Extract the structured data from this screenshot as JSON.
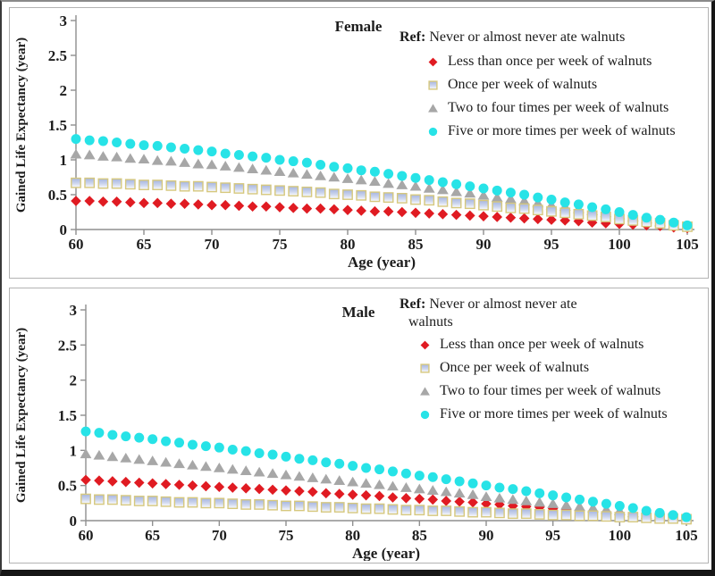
{
  "frame": {
    "background": "#ffffff",
    "outer_border_color": "#161616",
    "panel_border_color": "#b3b3b3",
    "axis_color": "#8f8f8f",
    "text_color": "#1c1c1c"
  },
  "chart_data": [
    {
      "type": "scatter",
      "title": "Female",
      "xlabel": "Age (year)",
      "ylabel": "Gained Life Expectancy (year)",
      "xlim": [
        60,
        105
      ],
      "ylim": [
        0,
        3
      ],
      "xticks": [
        60,
        65,
        70,
        75,
        80,
        85,
        90,
        95,
        100,
        105
      ],
      "yticks": [
        0,
        0.5,
        1,
        1.5,
        2,
        2.5,
        3
      ],
      "ytick_labels": [
        "0",
        "0.5",
        "1",
        "1.5",
        "2",
        "2.5",
        "3"
      ],
      "grid": false,
      "legend_position": "upper right",
      "legend_ref": {
        "label": "Ref:",
        "lines": [
          "Never or almost never ate walnuts"
        ]
      },
      "ages": [
        60,
        61,
        62,
        63,
        64,
        65,
        66,
        67,
        68,
        69,
        70,
        71,
        72,
        73,
        74,
        75,
        76,
        77,
        78,
        79,
        80,
        81,
        82,
        83,
        84,
        85,
        86,
        87,
        88,
        89,
        90,
        91,
        92,
        93,
        94,
        95,
        96,
        97,
        98,
        99,
        100,
        101,
        102,
        103,
        104,
        105
      ],
      "series": [
        {
          "name": "Less than once per week of walnuts",
          "marker": "diamond",
          "color": "#e01b22",
          "values": [
            0.41,
            0.41,
            0.4,
            0.4,
            0.39,
            0.38,
            0.38,
            0.37,
            0.37,
            0.36,
            0.35,
            0.35,
            0.34,
            0.33,
            0.33,
            0.32,
            0.31,
            0.3,
            0.3,
            0.29,
            0.28,
            0.27,
            0.26,
            0.26,
            0.25,
            0.24,
            0.23,
            0.22,
            0.21,
            0.2,
            0.19,
            0.18,
            0.17,
            0.16,
            0.15,
            0.14,
            0.13,
            0.12,
            0.1,
            0.09,
            0.08,
            0.07,
            0.06,
            0.05,
            0.03,
            0.02
          ]
        },
        {
          "name": "Once per week of walnuts",
          "marker": "square",
          "color": "#d6c87e",
          "fill_top": "#a6b5e0",
          "fill_bottom": "#fdfdff",
          "values": [
            0.67,
            0.67,
            0.66,
            0.66,
            0.65,
            0.64,
            0.64,
            0.63,
            0.62,
            0.62,
            0.61,
            0.6,
            0.59,
            0.58,
            0.57,
            0.56,
            0.55,
            0.54,
            0.53,
            0.51,
            0.5,
            0.49,
            0.47,
            0.46,
            0.45,
            0.43,
            0.42,
            0.4,
            0.38,
            0.37,
            0.35,
            0.33,
            0.31,
            0.3,
            0.28,
            0.26,
            0.24,
            0.22,
            0.2,
            0.18,
            0.15,
            0.13,
            0.11,
            0.09,
            0.06,
            0.04
          ]
        },
        {
          "name": "Two to four times per week of walnuts",
          "marker": "triangle",
          "color": "#a7a7a7",
          "values": [
            1.08,
            1.07,
            1.05,
            1.04,
            1.02,
            1.01,
            0.99,
            0.98,
            0.96,
            0.94,
            0.93,
            0.91,
            0.89,
            0.87,
            0.85,
            0.83,
            0.81,
            0.79,
            0.77,
            0.75,
            0.73,
            0.71,
            0.69,
            0.66,
            0.64,
            0.62,
            0.59,
            0.57,
            0.54,
            0.52,
            0.49,
            0.46,
            0.44,
            0.41,
            0.38,
            0.35,
            0.33,
            0.3,
            0.27,
            0.24,
            0.21,
            0.18,
            0.15,
            0.11,
            0.08,
            0.05
          ]
        },
        {
          "name": "Five or more times per week of walnuts",
          "marker": "circle",
          "color": "#27e3e7",
          "values": [
            1.3,
            1.28,
            1.27,
            1.25,
            1.23,
            1.21,
            1.2,
            1.18,
            1.16,
            1.14,
            1.12,
            1.09,
            1.07,
            1.05,
            1.03,
            1.0,
            0.98,
            0.96,
            0.93,
            0.9,
            0.88,
            0.85,
            0.83,
            0.8,
            0.77,
            0.74,
            0.71,
            0.68,
            0.65,
            0.62,
            0.59,
            0.56,
            0.53,
            0.5,
            0.46,
            0.43,
            0.39,
            0.36,
            0.32,
            0.29,
            0.25,
            0.21,
            0.17,
            0.14,
            0.1,
            0.06
          ]
        }
      ]
    },
    {
      "type": "scatter",
      "title": "Male",
      "xlabel": "Age (year)",
      "ylabel": "Gained Life Expectancy (year)",
      "xlim": [
        60,
        105
      ],
      "ylim": [
        0,
        3
      ],
      "xticks": [
        60,
        65,
        70,
        75,
        80,
        85,
        90,
        95,
        100,
        105
      ],
      "yticks": [
        0,
        0.5,
        1,
        1.5,
        2,
        2.5,
        3
      ],
      "ytick_labels": [
        "0",
        "0.5",
        "1",
        "1.5",
        "2",
        "2.5",
        "3"
      ],
      "grid": false,
      "legend_position": "upper right",
      "legend_ref": {
        "label": "Ref:",
        "lines": [
          "Never or almost never ate",
          "walnuts"
        ]
      },
      "ages": [
        60,
        61,
        62,
        63,
        64,
        65,
        66,
        67,
        68,
        69,
        70,
        71,
        72,
        73,
        74,
        75,
        76,
        77,
        78,
        79,
        80,
        81,
        82,
        83,
        84,
        85,
        86,
        87,
        88,
        89,
        90,
        91,
        92,
        93,
        94,
        95,
        96,
        97,
        98,
        99,
        100,
        101,
        102,
        103,
        104,
        105
      ],
      "series": [
        {
          "name": "Less than once per week of walnuts",
          "marker": "diamond",
          "color": "#e01b22",
          "values": [
            0.58,
            0.57,
            0.56,
            0.55,
            0.54,
            0.53,
            0.52,
            0.51,
            0.5,
            0.49,
            0.48,
            0.47,
            0.46,
            0.45,
            0.44,
            0.43,
            0.42,
            0.41,
            0.39,
            0.38,
            0.37,
            0.36,
            0.35,
            0.33,
            0.32,
            0.31,
            0.3,
            0.28,
            0.27,
            0.26,
            0.24,
            0.23,
            0.21,
            0.2,
            0.19,
            0.17,
            0.16,
            0.14,
            0.13,
            0.11,
            0.1,
            0.08,
            0.07,
            0.05,
            0.04,
            0.02
          ]
        },
        {
          "name": "Once per week of walnuts",
          "marker": "square",
          "color": "#d6c87e",
          "fill_top": "#a6b5e0",
          "fill_bottom": "#fdfdff",
          "values": [
            0.31,
            0.3,
            0.3,
            0.29,
            0.28,
            0.28,
            0.27,
            0.26,
            0.26,
            0.25,
            0.25,
            0.24,
            0.23,
            0.23,
            0.22,
            0.21,
            0.21,
            0.2,
            0.19,
            0.19,
            0.18,
            0.17,
            0.17,
            0.16,
            0.15,
            0.15,
            0.14,
            0.14,
            0.13,
            0.12,
            0.12,
            0.11,
            0.1,
            0.1,
            0.09,
            0.08,
            0.08,
            0.07,
            0.07,
            0.06,
            0.05,
            0.05,
            0.04,
            0.03,
            0.03,
            0.02
          ]
        },
        {
          "name": "Two to four times per week of walnuts",
          "marker": "triangle",
          "color": "#a7a7a7",
          "values": [
            0.95,
            0.93,
            0.91,
            0.89,
            0.87,
            0.85,
            0.83,
            0.81,
            0.79,
            0.77,
            0.75,
            0.73,
            0.71,
            0.69,
            0.67,
            0.65,
            0.63,
            0.61,
            0.59,
            0.57,
            0.55,
            0.53,
            0.51,
            0.49,
            0.47,
            0.45,
            0.43,
            0.41,
            0.39,
            0.37,
            0.34,
            0.32,
            0.3,
            0.28,
            0.26,
            0.24,
            0.22,
            0.2,
            0.18,
            0.16,
            0.14,
            0.11,
            0.09,
            0.07,
            0.05,
            0.03
          ]
        },
        {
          "name": "Five or more times per week of walnuts",
          "marker": "circle",
          "color": "#27e3e7",
          "values": [
            1.27,
            1.25,
            1.22,
            1.2,
            1.18,
            1.16,
            1.13,
            1.11,
            1.08,
            1.06,
            1.04,
            1.01,
            0.99,
            0.96,
            0.94,
            0.91,
            0.88,
            0.86,
            0.83,
            0.81,
            0.78,
            0.75,
            0.73,
            0.7,
            0.67,
            0.64,
            0.62,
            0.59,
            0.56,
            0.53,
            0.5,
            0.47,
            0.45,
            0.42,
            0.39,
            0.36,
            0.33,
            0.3,
            0.27,
            0.24,
            0.21,
            0.18,
            0.14,
            0.11,
            0.08,
            0.05
          ]
        }
      ]
    }
  ]
}
